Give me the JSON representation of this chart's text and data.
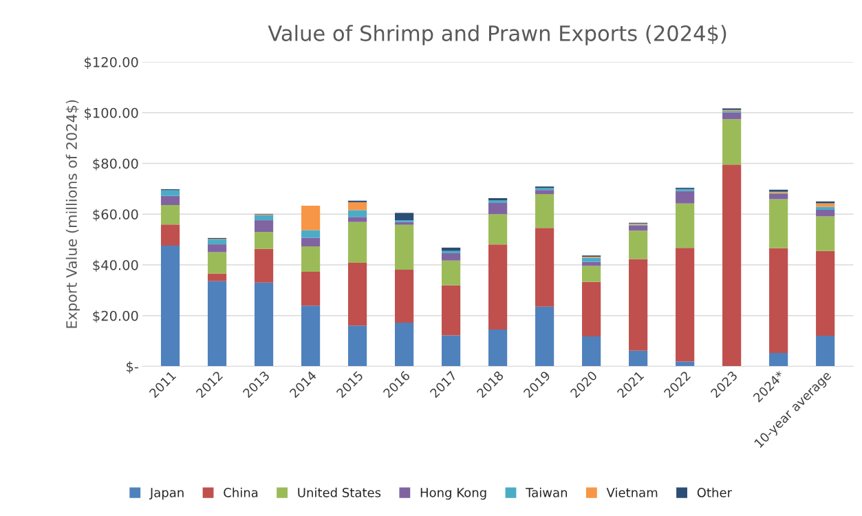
{
  "chart_data": {
    "type": "bar",
    "title": "Value of Shrimp and Prawn Exports (2024$)",
    "ylabel": "Export Value (millions of 2024$)",
    "categories": [
      "2011",
      "2012",
      "2013",
      "2014",
      "2015",
      "2016",
      "2017",
      "2018",
      "2019",
      "2020",
      "2021",
      "2022",
      "2023",
      "2024*",
      "10-year average"
    ],
    "stacked": true,
    "series": [
      {
        "name": "Japan",
        "color": "#4f81bd",
        "values": [
          47.6,
          33.6,
          33.0,
          23.9,
          16.1,
          17.2,
          12.2,
          14.5,
          23.5,
          11.8,
          6.2,
          1.9,
          null,
          5.3,
          12.1
        ]
      },
      {
        "name": "China",
        "color": "#c0504d",
        "values": [
          8.3,
          3.0,
          13.3,
          13.4,
          24.7,
          20.9,
          19.7,
          33.6,
          31.1,
          21.5,
          36.1,
          44.8,
          79.5,
          41.3,
          33.4
        ]
      },
      {
        "name": "United States",
        "color": "#9bbb59",
        "values": [
          7.7,
          8.4,
          6.7,
          10.0,
          16.1,
          17.7,
          9.8,
          11.9,
          13.3,
          6.3,
          11.2,
          17.5,
          17.9,
          19.3,
          13.6
        ]
      },
      {
        "name": "Hong Kong",
        "color": "#8064a2",
        "values": [
          3.6,
          3.1,
          4.6,
          3.4,
          2.0,
          1.1,
          2.9,
          4.4,
          1.6,
          1.6,
          2.1,
          4.9,
          2.7,
          2.0,
          2.6
        ]
      },
      {
        "name": "Taiwan",
        "color": "#4bacc6",
        "values": [
          2.2,
          1.9,
          2.0,
          3.0,
          2.7,
          0.7,
          0.9,
          1.0,
          0.8,
          1.6,
          0.3,
          0.8,
          0.6,
          0.4,
          1.2
        ]
      },
      {
        "name": "Vietnam",
        "color": "#f79646",
        "values": [
          null,
          0.2,
          0.3,
          9.6,
          3.1,
          null,
          null,
          null,
          null,
          0.4,
          0.4,
          null,
          0.4,
          0.5,
          1.4
        ]
      },
      {
        "name": "Other",
        "color": "#2c4d75",
        "values": [
          0.4,
          0.4,
          0.2,
          null,
          0.6,
          2.9,
          1.3,
          0.9,
          0.6,
          0.5,
          0.3,
          0.5,
          0.6,
          0.8,
          0.7
        ]
      }
    ],
    "ylim": [
      0,
      120
    ],
    "yticks": [
      {
        "value": 0,
        "label": "$-"
      },
      {
        "value": 20,
        "label": "$20.00"
      },
      {
        "value": 40,
        "label": "$40.00"
      },
      {
        "value": 60,
        "label": "$60.00"
      },
      {
        "value": 80,
        "label": "$80.00"
      },
      {
        "value": 100,
        "label": "$100.00"
      },
      {
        "value": 120,
        "label": "$120.00"
      }
    ],
    "grid": "y",
    "legend": "bottom"
  }
}
